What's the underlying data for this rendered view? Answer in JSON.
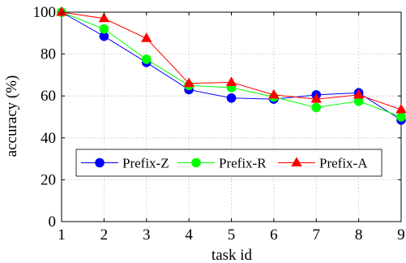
{
  "chart_data": {
    "type": "line",
    "xlabel": "task id",
    "ylabel": "accuracy (%)",
    "x": [
      1,
      2,
      3,
      4,
      5,
      6,
      7,
      8,
      9
    ],
    "xlim": [
      1,
      9
    ],
    "ylim": [
      0,
      100
    ],
    "xticks": [
      1,
      2,
      3,
      4,
      5,
      6,
      7,
      8,
      9
    ],
    "yticks": [
      0,
      20,
      40,
      60,
      80,
      100
    ],
    "grid": true,
    "legend_position": "lower-center",
    "series": [
      {
        "name": "Prefix-Z",
        "color": "#0000ff",
        "marker": "circle",
        "values": [
          100,
          88.5,
          76,
          63,
          59,
          58.5,
          60.5,
          61.5,
          48.5
        ]
      },
      {
        "name": "Prefix-R",
        "color": "#00ff00",
        "marker": "circle",
        "values": [
          100,
          92,
          77.5,
          65,
          64,
          59.5,
          54.5,
          57.5,
          50
        ]
      },
      {
        "name": "Prefix-A",
        "color": "#ff0000",
        "marker": "triangle",
        "values": [
          100,
          97,
          87.5,
          66,
          66.5,
          60.5,
          58.5,
          60.5,
          53.5
        ]
      }
    ]
  }
}
